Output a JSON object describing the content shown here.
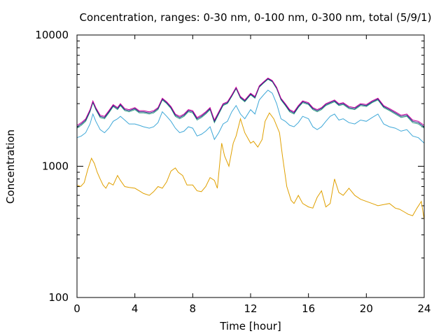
{
  "chart_data": {
    "type": "line",
    "title": "Concentration, ranges: 0-30 nm, 0-100 nm, 0-300 nm, total (5/9/1)",
    "xlabel": "Time [hour]",
    "ylabel": "Concentration",
    "xlim": [
      0,
      24
    ],
    "ylim": [
      100,
      10000
    ],
    "yscale": "log",
    "grid": false,
    "legend": "none",
    "xticks": [
      "0",
      "4",
      "8",
      "12",
      "16",
      "20",
      "24"
    ],
    "yticks": [
      "100",
      "1000",
      "10000"
    ],
    "series": [
      {
        "color": "#e0a000",
        "x": [
          0,
          0.25,
          0.5,
          0.75,
          1,
          1.2,
          1.4,
          1.6,
          1.8,
          2,
          2.2,
          2.5,
          2.8,
          3,
          3.3,
          3.6,
          4,
          4.3,
          4.6,
          5,
          5.3,
          5.6,
          5.9,
          6.2,
          6.5,
          6.8,
          7,
          7.3,
          7.6,
          8,
          8.3,
          8.6,
          8.9,
          9.2,
          9.5,
          9.7,
          10,
          10.2,
          10.5,
          10.8,
          11,
          11.3,
          11.6,
          12,
          12.2,
          12.5,
          12.8,
          13,
          13.3,
          13.6,
          14,
          14.2,
          14.5,
          14.8,
          15,
          15.3,
          15.6,
          16,
          16.3,
          16.6,
          16.9,
          17.2,
          17.5,
          17.8,
          18.1,
          18.4,
          18.8,
          19.2,
          19.6,
          20,
          20.4,
          20.8,
          21.2,
          21.6,
          22,
          22.3,
          22.6,
          22.9,
          23.2,
          23.5,
          23.8,
          24
        ],
        "y": [
          720,
          700,
          750,
          950,
          1150,
          1050,
          900,
          800,
          720,
          680,
          750,
          720,
          850,
          780,
          700,
          690,
          680,
          650,
          620,
          600,
          640,
          700,
          680,
          760,
          920,
          970,
          900,
          850,
          720,
          720,
          650,
          640,
          700,
          820,
          780,
          680,
          1500,
          1200,
          1000,
          1500,
          1700,
          2300,
          1800,
          1500,
          1550,
          1400,
          1600,
          2200,
          2550,
          2300,
          1800,
          1200,
          700,
          550,
          520,
          600,
          520,
          490,
          480,
          580,
          650,
          490,
          520,
          800,
          630,
          600,
          680,
          600,
          560,
          540,
          520,
          500,
          510,
          520,
          480,
          470,
          450,
          430,
          420,
          480,
          540,
          390
        ]
      },
      {
        "color": "#3fa8d8",
        "x": [
          0,
          0.3,
          0.6,
          0.9,
          1.1,
          1.3,
          1.6,
          1.9,
          2.2,
          2.5,
          2.8,
          3,
          3.3,
          3.6,
          4,
          4.3,
          4.6,
          5,
          5.3,
          5.6,
          5.9,
          6.2,
          6.5,
          6.8,
          7.1,
          7.4,
          7.7,
          8,
          8.3,
          8.6,
          8.9,
          9.2,
          9.5,
          9.8,
          10.1,
          10.4,
          10.7,
          11,
          11.3,
          11.6,
          12,
          12.3,
          12.6,
          12.9,
          13.2,
          13.5,
          13.8,
          14.1,
          14.4,
          14.7,
          15,
          15.3,
          15.6,
          16,
          16.3,
          16.6,
          16.9,
          17.2,
          17.5,
          17.8,
          18.1,
          18.4,
          18.8,
          19.2,
          19.6,
          20,
          20.4,
          20.8,
          21.2,
          21.6,
          22,
          22.4,
          22.8,
          23.2,
          23.6,
          24
        ],
        "y": [
          1650,
          1700,
          1800,
          2100,
          2500,
          2200,
          1900,
          1800,
          1950,
          2200,
          2300,
          2400,
          2250,
          2100,
          2100,
          2050,
          2000,
          1950,
          2000,
          2150,
          2600,
          2400,
          2200,
          1950,
          1800,
          1850,
          2000,
          1950,
          1700,
          1750,
          1850,
          2000,
          1600,
          1800,
          2100,
          2200,
          2600,
          2900,
          2500,
          2300,
          2700,
          2500,
          3200,
          3500,
          3800,
          3600,
          3000,
          2300,
          2200,
          2050,
          2000,
          2150,
          2400,
          2300,
          2000,
          1900,
          2000,
          2200,
          2400,
          2500,
          2250,
          2300,
          2150,
          2100,
          2250,
          2200,
          2350,
          2500,
          2100,
          2000,
          1950,
          1850,
          1900,
          1700,
          1650,
          1500
        ]
      },
      {
        "color": "#2e9e82",
        "x": [
          0,
          0.3,
          0.6,
          0.9,
          1.1,
          1.3,
          1.6,
          1.9,
          2.2,
          2.5,
          2.8,
          3,
          3.3,
          3.6,
          4,
          4.3,
          4.6,
          5,
          5.3,
          5.6,
          5.9,
          6.2,
          6.5,
          6.8,
          7.1,
          7.4,
          7.7,
          8,
          8.3,
          8.6,
          8.9,
          9.2,
          9.5,
          9.8,
          10.1,
          10.4,
          10.7,
          11,
          11.3,
          11.6,
          12,
          12.3,
          12.6,
          12.9,
          13.2,
          13.5,
          13.8,
          14.1,
          14.4,
          14.7,
          15,
          15.3,
          15.6,
          16,
          16.3,
          16.6,
          16.9,
          17.2,
          17.5,
          17.8,
          18.1,
          18.4,
          18.8,
          19.2,
          19.6,
          20,
          20.4,
          20.8,
          21.2,
          21.6,
          22,
          22.4,
          22.8,
          23.2,
          23.6,
          24
        ],
        "y": [
          1950,
          2050,
          2200,
          2600,
          3050,
          2700,
          2350,
          2300,
          2550,
          2850,
          2700,
          2900,
          2650,
          2600,
          2700,
          2550,
          2550,
          2500,
          2550,
          2700,
          3200,
          3000,
          2750,
          2400,
          2300,
          2400,
          2600,
          2550,
          2250,
          2350,
          2500,
          2700,
          2150,
          2500,
          2900,
          3000,
          3400,
          3900,
          3300,
          3100,
          3500,
          3300,
          4000,
          4300,
          4600,
          4400,
          3900,
          3200,
          2900,
          2600,
          2500,
          2800,
          3050,
          2950,
          2700,
          2600,
          2700,
          2900,
          3000,
          3100,
          2900,
          2950,
          2750,
          2700,
          2900,
          2850,
          3050,
          3200,
          2800,
          2650,
          2500,
          2350,
          2400,
          2150,
          2100,
          1950
        ]
      },
      {
        "color": "#1a237e",
        "x": [
          0,
          0.3,
          0.6,
          0.9,
          1.1,
          1.3,
          1.6,
          1.9,
          2.2,
          2.5,
          2.8,
          3,
          3.3,
          3.6,
          4,
          4.3,
          4.6,
          5,
          5.3,
          5.6,
          5.9,
          6.2,
          6.5,
          6.8,
          7.1,
          7.4,
          7.7,
          8,
          8.3,
          8.6,
          8.9,
          9.2,
          9.5,
          9.8,
          10.1,
          10.4,
          10.7,
          11,
          11.3,
          11.6,
          12,
          12.3,
          12.6,
          12.9,
          13.2,
          13.5,
          13.8,
          14.1,
          14.4,
          14.7,
          15,
          15.3,
          15.6,
          16,
          16.3,
          16.6,
          16.9,
          17.2,
          17.5,
          17.8,
          18.1,
          18.4,
          18.8,
          19.2,
          19.6,
          20,
          20.4,
          20.8,
          21.2,
          21.6,
          22,
          22.4,
          22.8,
          23.2,
          23.6,
          24
        ],
        "y": [
          2000,
          2100,
          2250,
          2650,
          3100,
          2750,
          2400,
          2350,
          2600,
          2900,
          2750,
          2950,
          2700,
          2650,
          2750,
          2600,
          2600,
          2550,
          2600,
          2750,
          3250,
          3050,
          2800,
          2450,
          2350,
          2450,
          2650,
          2600,
          2300,
          2400,
          2550,
          2750,
          2200,
          2550,
          2950,
          3050,
          3450,
          3950,
          3350,
          3150,
          3550,
          3350,
          4050,
          4350,
          4650,
          4450,
          3950,
          3250,
          2950,
          2650,
          2550,
          2850,
          3100,
          3000,
          2750,
          2650,
          2750,
          2950,
          3050,
          3150,
          2950,
          3000,
          2800,
          2750,
          2950,
          2900,
          3100,
          3250,
          2850,
          2700,
          2550,
          2400,
          2450,
          2200,
          2150,
          2000
        ]
      },
      {
        "color": "#c8009c",
        "x": [
          0,
          0.3,
          0.6,
          0.9,
          1.1,
          1.3,
          1.6,
          1.9,
          2.2,
          2.5,
          2.8,
          3,
          3.3,
          3.6,
          4,
          4.3,
          4.6,
          5,
          5.3,
          5.6,
          5.9,
          6.2,
          6.5,
          6.8,
          7.1,
          7.4,
          7.7,
          8,
          8.3,
          8.6,
          8.9,
          9.2,
          9.5,
          9.8,
          10.1,
          10.4,
          10.7,
          11,
          11.3,
          11.6,
          12,
          12.3,
          12.6,
          12.9,
          13.2,
          13.5,
          13.8,
          14.1,
          14.4,
          14.7,
          15,
          15.3,
          15.6,
          16,
          16.3,
          16.6,
          16.9,
          17.2,
          17.5,
          17.8,
          18.1,
          18.4,
          18.8,
          19.2,
          19.6,
          20,
          20.4,
          20.8,
          21.2,
          21.6,
          22,
          22.4,
          22.8,
          23.2,
          23.6,
          24
        ],
        "y": [
          2050,
          2150,
          2300,
          2700,
          3150,
          2800,
          2450,
          2400,
          2650,
          2950,
          2800,
          3000,
          2750,
          2700,
          2800,
          2650,
          2650,
          2600,
          2650,
          2800,
          3300,
          3100,
          2850,
          2500,
          2400,
          2500,
          2700,
          2650,
          2350,
          2450,
          2600,
          2800,
          2250,
          2600,
          3000,
          3100,
          3500,
          4000,
          3400,
          3200,
          3600,
          3400,
          4100,
          4400,
          4700,
          4500,
          4000,
          3300,
          3000,
          2700,
          2600,
          2900,
          3150,
          3050,
          2800,
          2700,
          2800,
          3000,
          3100,
          3200,
          3000,
          3050,
          2850,
          2800,
          3000,
          2950,
          3150,
          3300,
          2900,
          2750,
          2600,
          2450,
          2500,
          2250,
          2200,
          2050
        ]
      }
    ]
  }
}
